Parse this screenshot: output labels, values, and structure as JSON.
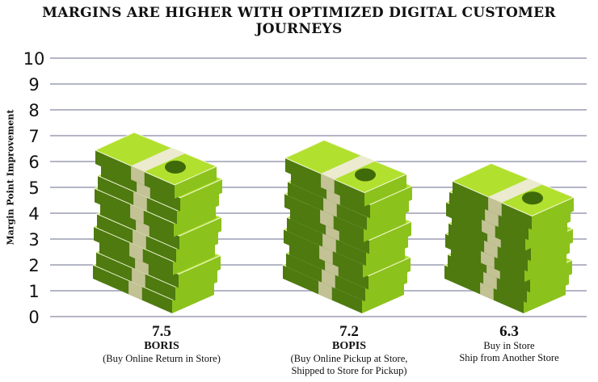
{
  "chart_data": {
    "type": "bar",
    "style": "pictorial stacks of cash",
    "title": "MARGINS ARE HIGHER WITH OPTIMIZED DIGITAL CUSTOMER JOURNEYS",
    "xlabel": "",
    "ylabel": "Margin Point Improvement",
    "ylim": [
      0,
      10
    ],
    "yticks": [
      "0",
      "1",
      "2",
      "3",
      "4",
      "5",
      "6",
      "7",
      "8",
      "9",
      "10"
    ],
    "grid": true,
    "categories": [
      {
        "value_label": "7.5",
        "name": "BORIS",
        "desc": [
          "(Buy Online Return in Store)"
        ]
      },
      {
        "value_label": "7.2",
        "name": "BOPIS",
        "desc": [
          "(Buy Online Pickup at Store,",
          "Shipped to Store for Pickup)"
        ]
      },
      {
        "value_label": "6.3",
        "name": "",
        "desc": [
          "Buy in Store",
          "Ship from Another Store"
        ]
      }
    ],
    "values": [
      7.5,
      7.2,
      6.3
    ],
    "colors": {
      "grid": "#b4b6c6",
      "dark": "#4e7a10",
      "mid": "#8cc21c",
      "light": "#b2e02e",
      "band": "#ecebd0",
      "band_side": "#c3c295"
    }
  }
}
